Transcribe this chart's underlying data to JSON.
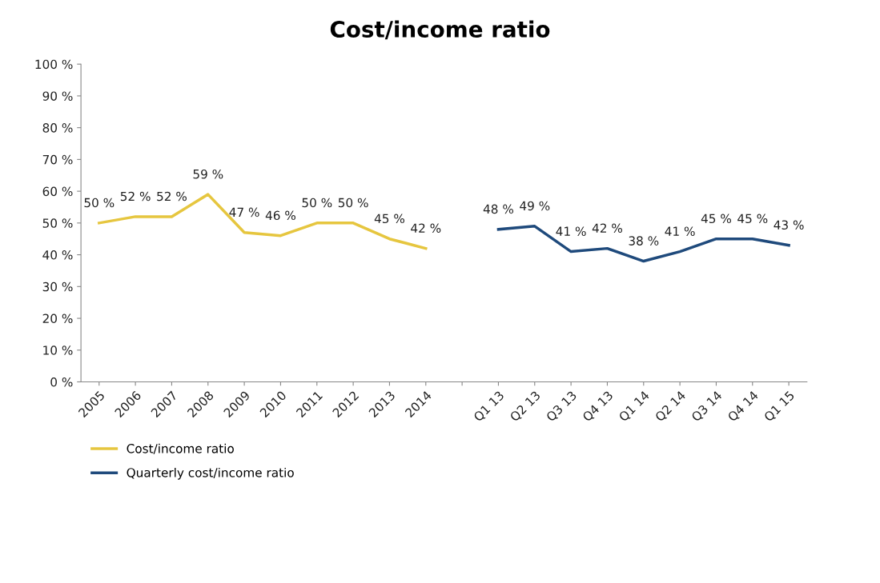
{
  "chart_data": {
    "type": "line",
    "title": "Cost/income ratio",
    "categories": [
      "2005",
      "2006",
      "2007",
      "2008",
      "2009",
      "2010",
      "2011",
      "2012",
      "2013",
      "2014",
      null,
      "Q1 13",
      "Q2 13",
      "Q3 13",
      "Q4 13",
      "Q1 14",
      "Q2 14",
      "Q3 14",
      "Q4 14",
      "Q1 15"
    ],
    "series": [
      {
        "name": "Cost/income ratio",
        "color": "#e6c63f",
        "values": [
          50,
          52,
          52,
          59,
          47,
          46,
          50,
          50,
          45,
          42,
          null,
          null,
          null,
          null,
          null,
          null,
          null,
          null,
          null,
          null
        ],
        "value_labels": [
          "50 %",
          "52 %",
          "52 %",
          "59 %",
          "47 %",
          "46 %",
          "50 %",
          "50 %",
          "45 %",
          "42 %",
          null,
          null,
          null,
          null,
          null,
          null,
          null,
          null,
          null,
          null
        ]
      },
      {
        "name": "Quarterly cost/income ratio",
        "color": "#1f4a7c",
        "values": [
          null,
          null,
          null,
          null,
          null,
          null,
          null,
          null,
          null,
          null,
          null,
          48,
          49,
          41,
          42,
          38,
          41,
          45,
          45,
          43
        ],
        "value_labels": [
          null,
          null,
          null,
          null,
          null,
          null,
          null,
          null,
          null,
          null,
          null,
          "48 %",
          "49 %",
          "41 %",
          "42 %",
          "38 %",
          "41 %",
          "45 %",
          "45 %",
          "43 %"
        ]
      }
    ],
    "ylim": [
      0,
      100
    ],
    "yticks": [
      {
        "value": 0,
        "label": "0 %"
      },
      {
        "value": 10,
        "label": "10 %"
      },
      {
        "value": 20,
        "label": "20 %"
      },
      {
        "value": 30,
        "label": "30 %"
      },
      {
        "value": 40,
        "label": "40 %"
      },
      {
        "value": 50,
        "label": "50 %"
      },
      {
        "value": 60,
        "label": "60 %"
      },
      {
        "value": 70,
        "label": "70 %"
      },
      {
        "value": 80,
        "label": "80 %"
      },
      {
        "value": 90,
        "label": "90 %"
      },
      {
        "value": 100,
        "label": "100 %"
      }
    ],
    "grid": false,
    "legend": "bottom left",
    "marker": "none",
    "line_style": "solid"
  }
}
